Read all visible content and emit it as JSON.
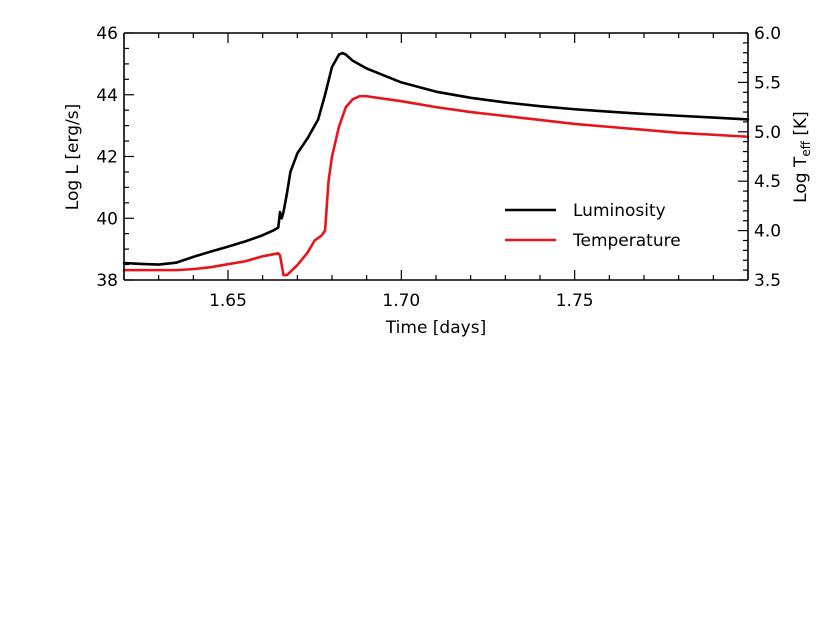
{
  "chart_data": {
    "type": "line",
    "xlabel": "Time [days]",
    "ylabel_left": "Log L [erg/s]",
    "ylabel_right": "Log T",
    "ylabel_right_sub": "eff",
    "ylabel_right_unit": " [K]",
    "xlim": [
      1.62,
      1.8
    ],
    "ylim_left": [
      38.0,
      46.0
    ],
    "ylim_right": [
      3.5,
      6.0
    ],
    "x_ticks": [
      1.65,
      1.7,
      1.75
    ],
    "x_tick_labels": [
      "1.65",
      "1.70",
      "1.75"
    ],
    "y_left_ticks": [
      38,
      40,
      42,
      44,
      46
    ],
    "y_left_tick_labels": [
      "38",
      "40",
      "42",
      "44",
      "46"
    ],
    "y_right_ticks": [
      3.5,
      4.0,
      4.5,
      5.0,
      5.5,
      6.0
    ],
    "y_right_tick_labels": [
      "3.5",
      "4.0",
      "4.5",
      "5.0",
      "5.5",
      "6.0"
    ],
    "grid": false,
    "legend_position": "right-middle",
    "series": [
      {
        "name": "Luminosity",
        "axis": "left",
        "color": "#000000",
        "x": [
          1.62,
          1.625,
          1.63,
          1.635,
          1.64,
          1.645,
          1.65,
          1.655,
          1.66,
          1.663,
          1.6645,
          1.665,
          1.6655,
          1.666,
          1.667,
          1.668,
          1.67,
          1.673,
          1.676,
          1.678,
          1.68,
          1.682,
          1.683,
          1.684,
          1.686,
          1.69,
          1.7,
          1.71,
          1.72,
          1.73,
          1.74,
          1.75,
          1.76,
          1.77,
          1.78,
          1.79,
          1.8
        ],
        "y": [
          38.55,
          38.52,
          38.5,
          38.56,
          38.75,
          38.92,
          39.08,
          39.25,
          39.45,
          39.6,
          39.7,
          40.2,
          40.0,
          40.2,
          40.8,
          41.5,
          42.1,
          42.6,
          43.2,
          44.0,
          44.9,
          45.3,
          45.35,
          45.3,
          45.1,
          44.85,
          44.4,
          44.1,
          43.9,
          43.75,
          43.63,
          43.53,
          43.45,
          43.38,
          43.32,
          43.26,
          43.2
        ]
      },
      {
        "name": "Temperature",
        "axis": "right",
        "color": "#e8141c",
        "x": [
          1.62,
          1.625,
          1.63,
          1.635,
          1.64,
          1.645,
          1.65,
          1.655,
          1.66,
          1.663,
          1.6645,
          1.665,
          1.666,
          1.667,
          1.67,
          1.673,
          1.675,
          1.677,
          1.678,
          1.679,
          1.68,
          1.682,
          1.684,
          1.686,
          1.688,
          1.69,
          1.7,
          1.71,
          1.72,
          1.73,
          1.74,
          1.75,
          1.76,
          1.77,
          1.78,
          1.79,
          1.8
        ],
        "y": [
          3.6,
          3.6,
          3.6,
          3.6,
          3.61,
          3.63,
          3.66,
          3.69,
          3.74,
          3.76,
          3.77,
          3.75,
          3.55,
          3.55,
          3.65,
          3.78,
          3.9,
          3.95,
          4.0,
          4.5,
          4.75,
          5.05,
          5.25,
          5.33,
          5.36,
          5.36,
          5.31,
          5.25,
          5.2,
          5.16,
          5.12,
          5.08,
          5.05,
          5.02,
          4.99,
          4.97,
          4.95
        ]
      }
    ]
  }
}
